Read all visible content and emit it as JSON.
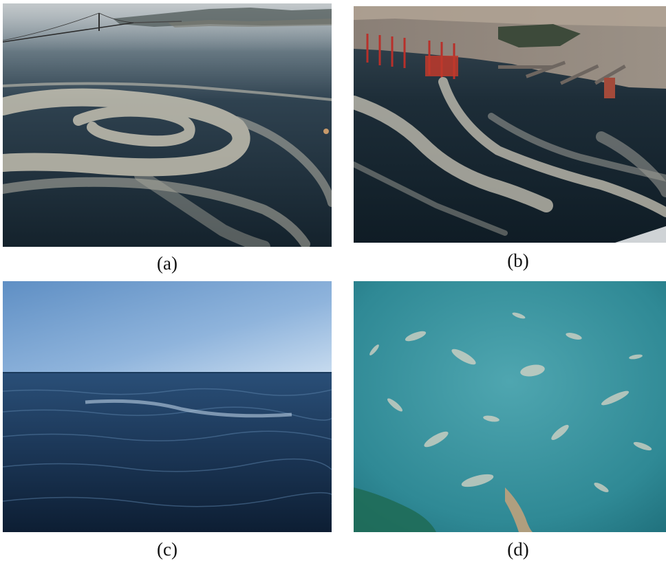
{
  "figure": {
    "panels": [
      {
        "id": "a",
        "caption": "(a)"
      },
      {
        "id": "b",
        "caption": "(b)"
      },
      {
        "id": "c",
        "caption": "(c)"
      },
      {
        "id": "d",
        "caption": "(d)"
      }
    ]
  }
}
